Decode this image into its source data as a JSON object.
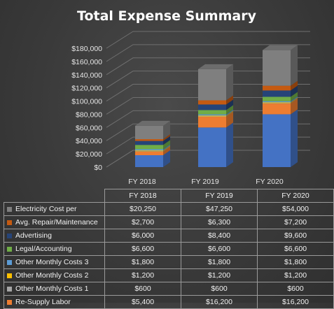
{
  "chart_data": {
    "type": "bar",
    "stacked": true,
    "three_d": true,
    "title": "Total Expense Summary",
    "categories": [
      "FY 2018",
      "FY 2019",
      "FY 2020"
    ],
    "ylim": [
      0,
      180000
    ],
    "yticks": [
      "$0",
      "$20,000",
      "$40,000",
      "$60,000",
      "$80,000",
      "$100,000",
      "$120,000",
      "$140,000",
      "$160,000",
      "$180,000"
    ],
    "grid": true,
    "legend": "table-below",
    "series": [
      {
        "name": "Electricity Cost per",
        "color": "#7f7f7f",
        "values": [
          20250,
          47250,
          54000
        ],
        "labels": [
          "$20,250",
          "$47,250",
          "$54,000"
        ]
      },
      {
        "name": "Avg. Repair/Maintenance",
        "color": "#c55a11",
        "values": [
          2700,
          6300,
          7200
        ],
        "labels": [
          "$2,700",
          "$6,300",
          "$7,200"
        ]
      },
      {
        "name": "Advertising",
        "color": "#264478",
        "values": [
          6000,
          8400,
          9600
        ],
        "labels": [
          "$6,000",
          "$8,400",
          "$9,600"
        ]
      },
      {
        "name": "Legal/Accounting",
        "color": "#70ad47",
        "values": [
          6600,
          6600,
          6600
        ],
        "labels": [
          "$6,600",
          "$6,600",
          "$6,600"
        ]
      },
      {
        "name": "Other Monthly Costs 3",
        "color": "#5b9bd5",
        "values": [
          1800,
          1800,
          1800
        ],
        "labels": [
          "$1,800",
          "$1,800",
          "$1,800"
        ]
      },
      {
        "name": "Other Monthly Costs 2",
        "color": "#ffc000",
        "values": [
          1200,
          1200,
          1200
        ],
        "labels": [
          "$1,200",
          "$1,200",
          "$1,200"
        ]
      },
      {
        "name": "Other Monthly Costs 1",
        "color": "#a5a5a5",
        "values": [
          600,
          600,
          600
        ],
        "labels": [
          "$600",
          "$600",
          "$600"
        ]
      },
      {
        "name": "Re-Supply Labor",
        "color": "#ed7d31",
        "values": [
          5400,
          16200,
          16200
        ],
        "labels": [
          "$5,400",
          "$16,200",
          "$16,200"
        ]
      },
      {
        "name": "",
        "color": "#4472c4",
        "values": [
          18000,
          60000,
          80000
        ],
        "hidden_in_table": true
      }
    ]
  }
}
